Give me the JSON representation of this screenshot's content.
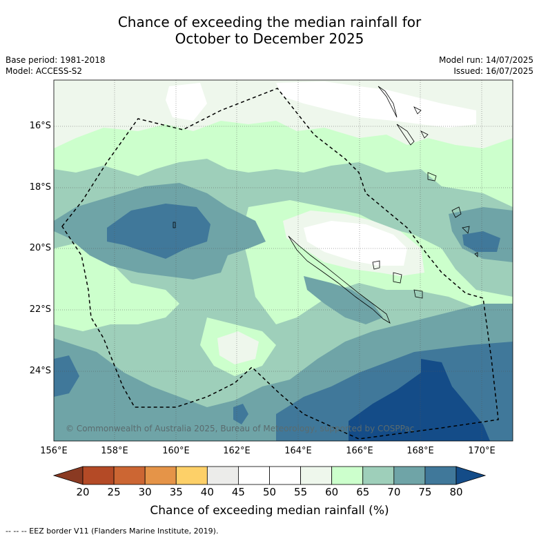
{
  "title_line1": "Chance of exceeding the median rainfall for",
  "title_line2": "October to December 2025",
  "base_period": "Base period: 1981-2018",
  "model": "Model: ACCESS-S2",
  "model_run": "Model run: 14/07/2025",
  "issued": "Issued: 16/07/2025",
  "copyright": "© Commonwealth of Australia 2025, Bureau of Meteorology, supported by COSPPac",
  "lat_ticks": [
    "16°S",
    "18°S",
    "20°S",
    "22°S",
    "24°S"
  ],
  "lon_ticks": [
    "156°E",
    "158°E",
    "160°E",
    "162°E",
    "164°E",
    "166°E",
    "168°E",
    "170°E"
  ],
  "colorbar": {
    "ticks": [
      "20",
      "25",
      "30",
      "35",
      "40",
      "45",
      "50",
      "55",
      "60",
      "65",
      "70",
      "75",
      "80"
    ],
    "colors": [
      "#8a3a22",
      "#b44a26",
      "#cc6633",
      "#e59448",
      "#fdd068",
      "#ececea",
      "#ffffff",
      "#ffffff",
      "#eef7ec",
      "#ccffcc",
      "#9ecfba",
      "#6fa4a7",
      "#40789a",
      "#144c88"
    ],
    "label": "Chance of exceeding median rainfall (%)"
  },
  "legend_footer": "-- -- -- EEZ border V11 (Flanders Marine Institute, 2019)."
}
